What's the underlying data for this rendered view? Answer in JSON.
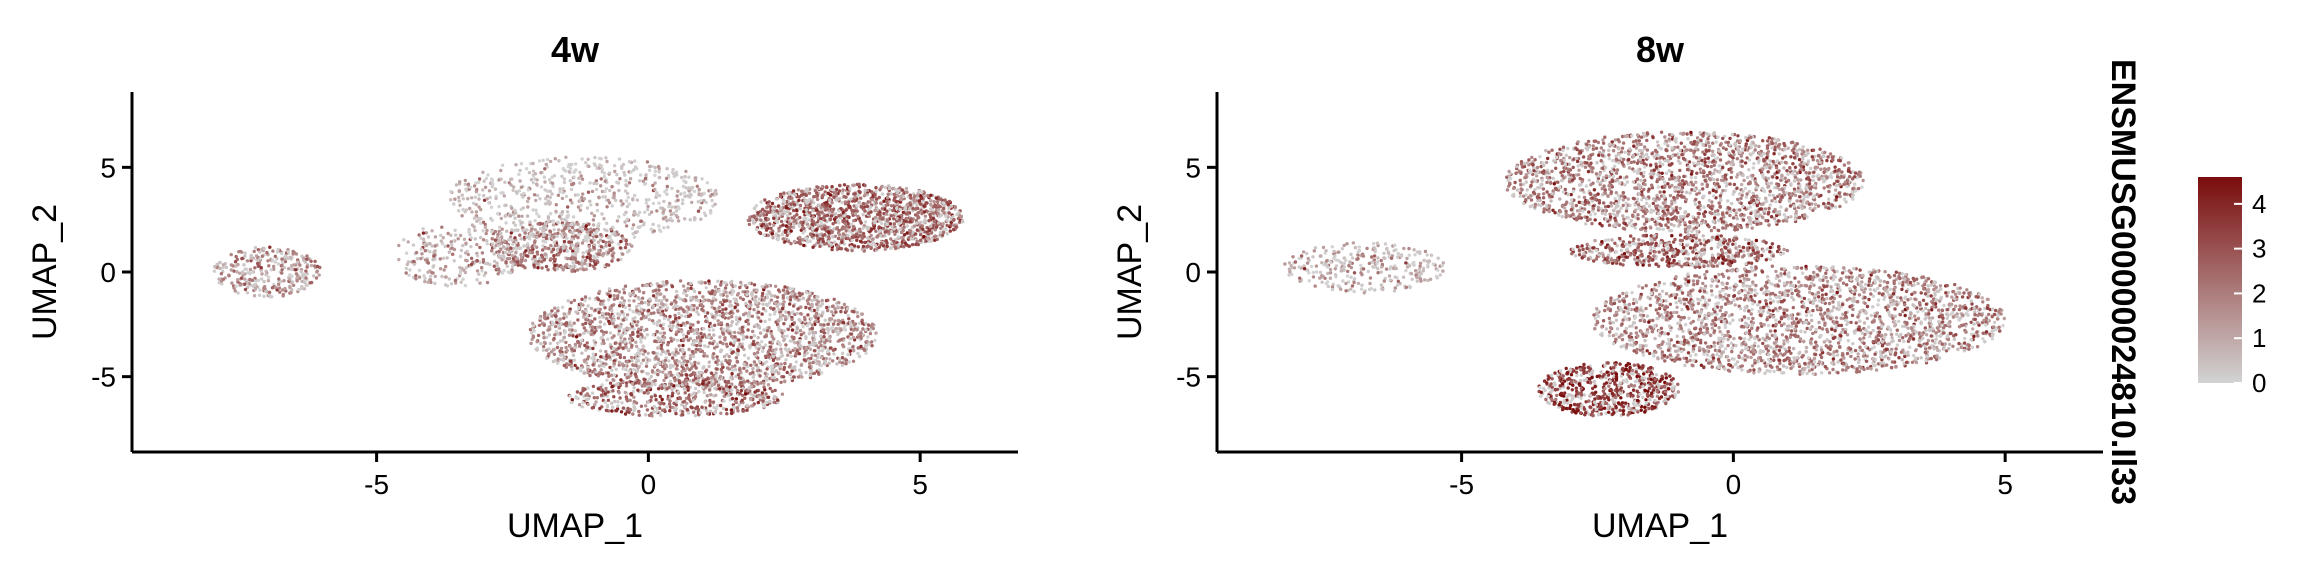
{
  "chart_data": [
    {
      "type": "scatter",
      "title": "4w",
      "xlabel": "UMAP_1",
      "ylabel": "UMAP_2",
      "xlim": [
        -9.5,
        6.8
      ],
      "ylim": [
        -8.6,
        8.6
      ],
      "xticks": [
        -5,
        0,
        5
      ],
      "yticks": [
        -5,
        0,
        5
      ],
      "xtick_labels": [
        "-5",
        "0",
        "5"
      ],
      "ytick_labels": [
        "-5",
        "0",
        "5"
      ],
      "grid": false,
      "clusters": [
        {
          "cx": 3.8,
          "cy": 2.6,
          "rx": 2.0,
          "ry": 1.6,
          "n": 1400,
          "expr": 2.6
        },
        {
          "cx": 1.0,
          "cy": -3.0,
          "rx": 3.2,
          "ry": 2.6,
          "n": 2200,
          "expr": 1.9
        },
        {
          "cx": 0.5,
          "cy": -6.0,
          "rx": 2.0,
          "ry": 0.9,
          "n": 450,
          "expr": 2.6
        },
        {
          "cx": -1.6,
          "cy": 1.2,
          "rx": 1.3,
          "ry": 1.2,
          "n": 450,
          "expr": 2.2
        },
        {
          "cx": -1.2,
          "cy": 3.5,
          "rx": 2.5,
          "ry": 2.0,
          "n": 650,
          "expr": 0.7
        },
        {
          "cx": -7.0,
          "cy": 0.0,
          "rx": 1.0,
          "ry": 1.2,
          "n": 300,
          "expr": 1.5
        },
        {
          "cx": -3.5,
          "cy": 0.8,
          "rx": 1.2,
          "ry": 1.5,
          "n": 250,
          "expr": 1.3
        }
      ]
    },
    {
      "type": "scatter",
      "title": "8w",
      "xlabel": "UMAP_1",
      "ylabel": "UMAP_2",
      "xlim": [
        -9.5,
        6.8
      ],
      "ylim": [
        -8.6,
        8.6
      ],
      "xticks": [
        -5,
        0,
        5
      ],
      "yticks": [
        -5,
        0,
        5
      ],
      "xtick_labels": [
        "-5",
        "0",
        "5"
      ],
      "ytick_labels": [
        "-5",
        "0",
        "5"
      ],
      "grid": false,
      "clusters": [
        {
          "cx": -0.9,
          "cy": 4.3,
          "rx": 3.3,
          "ry": 2.4,
          "n": 2000,
          "expr": 2.2
        },
        {
          "cx": 1.2,
          "cy": -2.3,
          "rx": 3.8,
          "ry": 2.6,
          "n": 2400,
          "expr": 2.0
        },
        {
          "cx": -2.3,
          "cy": -5.6,
          "rx": 1.3,
          "ry": 1.3,
          "n": 600,
          "expr": 3.6
        },
        {
          "cx": -1.0,
          "cy": 1.0,
          "rx": 2.0,
          "ry": 0.8,
          "n": 500,
          "expr": 2.8
        },
        {
          "cx": -6.8,
          "cy": 0.2,
          "rx": 1.5,
          "ry": 1.2,
          "n": 300,
          "expr": 1.0
        }
      ]
    }
  ],
  "feature_label": "ENSMUSG00000024810.Il33",
  "legend": {
    "ticks": [
      "4",
      "3",
      "2",
      "1",
      "0"
    ],
    "min": 0,
    "max": 4.6,
    "low_color": "#d3d3d3",
    "high_color": "#7a0c0c"
  }
}
